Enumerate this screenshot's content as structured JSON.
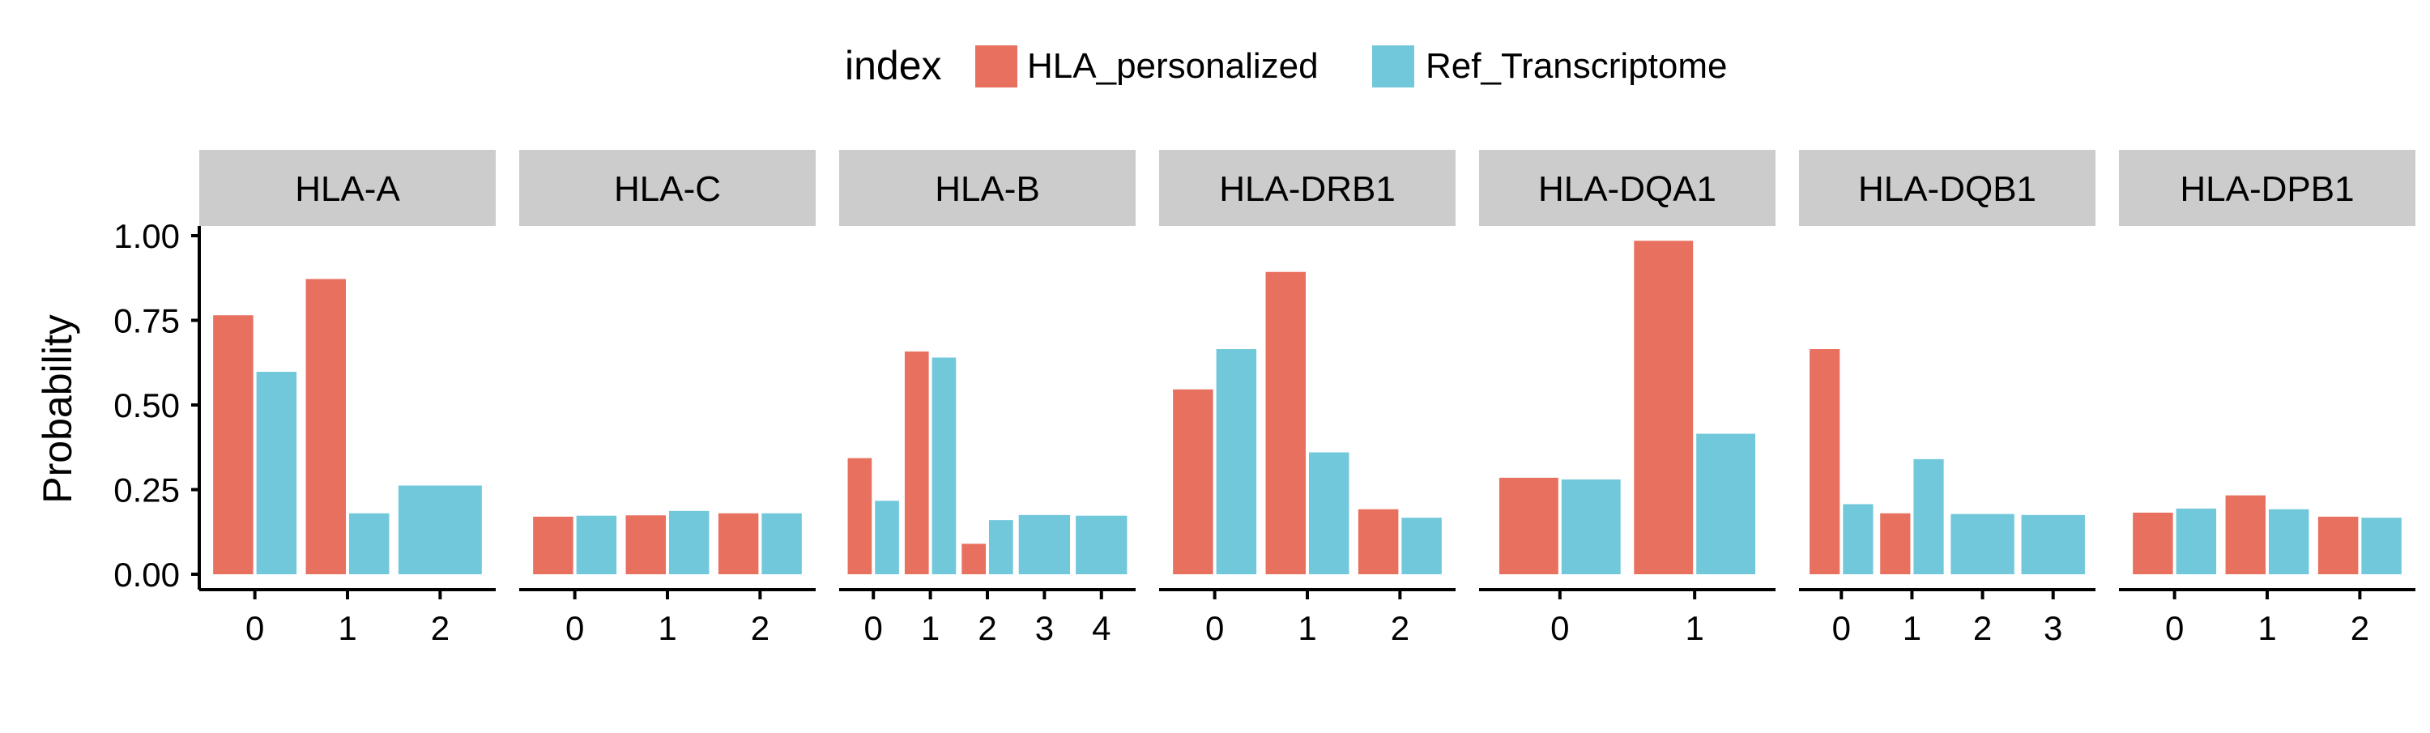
{
  "chart_data": {
    "type": "bar",
    "ylabel": "Probability",
    "ylim": [
      0,
      1.0
    ],
    "yticks": [
      "0.00",
      "0.25",
      "0.50",
      "0.75",
      "1.00"
    ],
    "legend": {
      "title": "index",
      "position": "top",
      "entries": [
        {
          "name": "HLA_personalized",
          "color": "#E8705F"
        },
        {
          "name": "Ref_Transcriptome",
          "color": "#72C8DB"
        }
      ]
    },
    "panels": [
      {
        "label": "HLA-A",
        "categories": [
          "0",
          "1",
          "2"
        ],
        "series": [
          {
            "name": "HLA_personalized",
            "values": [
              0.765,
              0.872,
              null
            ]
          },
          {
            "name": "Ref_Transcriptome",
            "values": [
              0.598,
              0.18,
              0.262
            ]
          }
        ]
      },
      {
        "label": "HLA-C",
        "categories": [
          "0",
          "1",
          "2"
        ],
        "series": [
          {
            "name": "HLA_personalized",
            "values": [
              0.17,
              0.174,
              0.18
            ]
          },
          {
            "name": "Ref_Transcriptome",
            "values": [
              0.173,
              0.187,
              0.18
            ]
          }
        ]
      },
      {
        "label": "HLA-B",
        "categories": [
          "0",
          "1",
          "2",
          "3",
          "4"
        ],
        "series": [
          {
            "name": "HLA_personalized",
            "values": [
              0.343,
              0.658,
              0.09,
              null,
              null
            ]
          },
          {
            "name": "Ref_Transcriptome",
            "values": [
              0.217,
              0.64,
              0.16,
              0.175,
              0.173
            ]
          }
        ]
      },
      {
        "label": "HLA-DRB1",
        "categories": [
          "0",
          "1",
          "2"
        ],
        "series": [
          {
            "name": "HLA_personalized",
            "values": [
              0.546,
              0.893,
              0.192
            ]
          },
          {
            "name": "Ref_Transcriptome",
            "values": [
              0.665,
              0.36,
              0.167
            ]
          }
        ]
      },
      {
        "label": "HLA-DQA1",
        "categories": [
          "0",
          "1"
        ],
        "series": [
          {
            "name": "HLA_personalized",
            "values": [
              0.285,
              0.985
            ]
          },
          {
            "name": "Ref_Transcriptome",
            "values": [
              0.28,
              0.415
            ]
          }
        ]
      },
      {
        "label": "HLA-DQB1",
        "categories": [
          "0",
          "1",
          "2",
          "3"
        ],
        "series": [
          {
            "name": "HLA_personalized",
            "values": [
              0.665,
              0.18,
              null,
              null
            ]
          },
          {
            "name": "Ref_Transcriptome",
            "values": [
              0.207,
              0.34,
              0.178,
              0.175
            ]
          }
        ]
      },
      {
        "label": "HLA-DPB1",
        "categories": [
          "0",
          "1",
          "2"
        ],
        "series": [
          {
            "name": "HLA_personalized",
            "values": [
              0.182,
              0.233,
              0.17
            ]
          },
          {
            "name": "Ref_Transcriptome",
            "values": [
              0.194,
              0.192,
              0.167
            ]
          }
        ]
      }
    ]
  }
}
